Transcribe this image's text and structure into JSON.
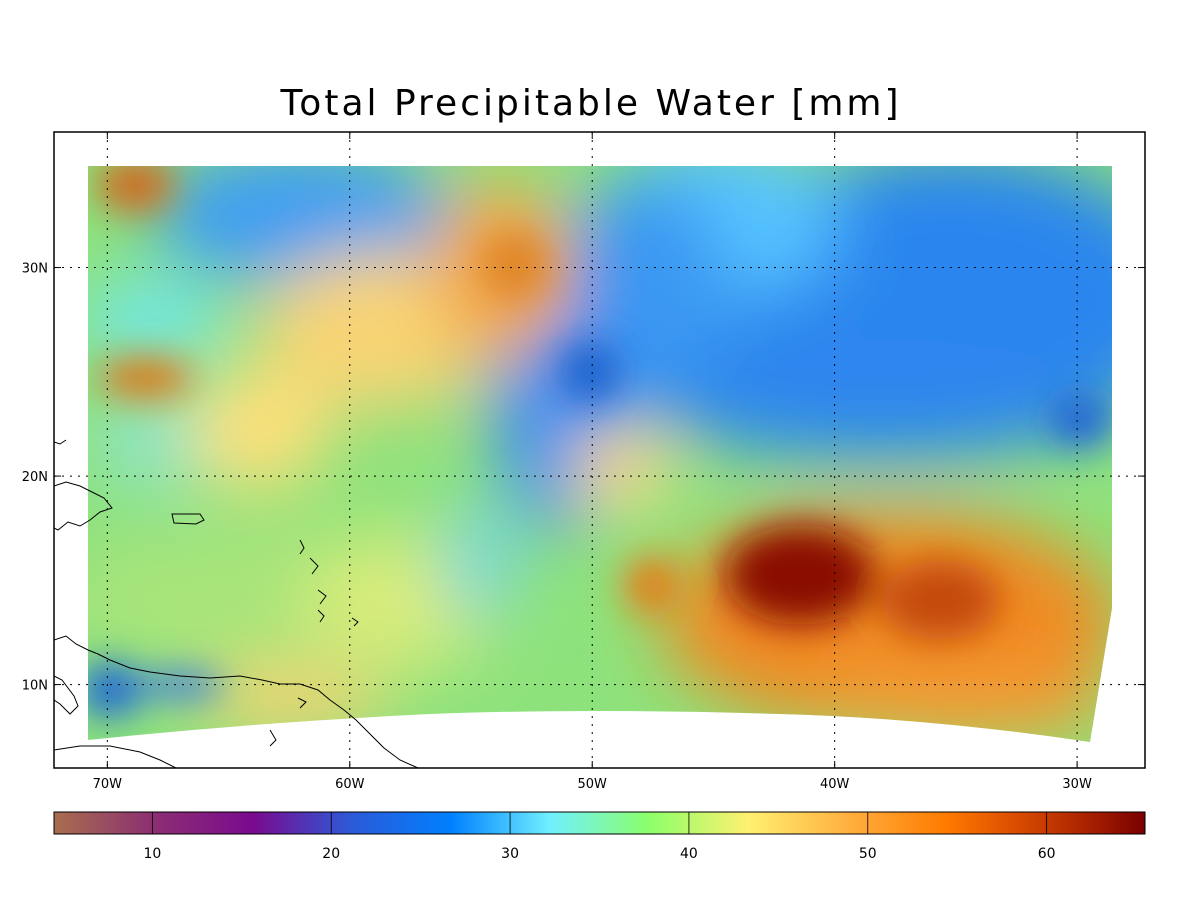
{
  "title": "Total Precipitable Water [mm]",
  "map": {
    "lon_range": [
      -72.2,
      -27.2
    ],
    "lat_range": [
      6,
      36.5
    ],
    "grid_lines": "dotted",
    "lat_ticks": [
      {
        "value": 30,
        "label": "30N"
      },
      {
        "value": 20,
        "label": "20N"
      },
      {
        "value": 10,
        "label": "10N"
      }
    ],
    "lon_ticks": [
      {
        "value": -70,
        "label": "70W"
      },
      {
        "value": -60,
        "label": "60W"
      },
      {
        "value": -50,
        "label": "50W"
      },
      {
        "value": -40,
        "label": "40W"
      },
      {
        "value": -30,
        "label": "30W"
      }
    ]
  },
  "colorbar": {
    "range": [
      4.5,
      65.5
    ],
    "ticks": [
      {
        "value": 10,
        "label": "10"
      },
      {
        "value": 20,
        "label": "20"
      },
      {
        "value": 30,
        "label": "30"
      },
      {
        "value": 40,
        "label": "40"
      },
      {
        "value": 50,
        "label": "50"
      },
      {
        "value": 60,
        "label": "60"
      }
    ],
    "colors": [
      "#a86e4e",
      "#8c2f72",
      "#7a0a8e",
      "#2c5ad8",
      "#0080ff",
      "#70f0ff",
      "#8cff6a",
      "#fff070",
      "#ffb040",
      "#ff7a00",
      "#c83a00",
      "#7a0000"
    ]
  },
  "features": {
    "max_region": {
      "lon": -41,
      "lat": 15.5,
      "value": 65
    },
    "min_region": {
      "lon": -50,
      "lat": 25.2,
      "value": 27
    }
  }
}
